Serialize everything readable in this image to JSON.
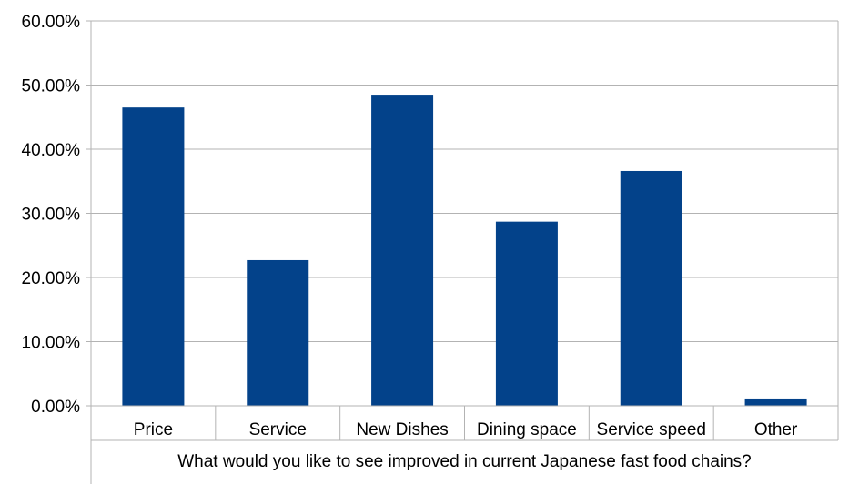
{
  "chart_data": {
    "type": "bar",
    "title": "",
    "xlabel": "What would you like to see improved in current Japanese fast food chains?",
    "ylabel": "",
    "categories": [
      "Price",
      "Service",
      "New Dishes",
      "Dining space",
      "Service speed",
      "Other"
    ],
    "values": [
      46.5,
      22.7,
      48.5,
      28.7,
      36.6,
      1.0
    ],
    "ylim": [
      0,
      60
    ],
    "yticks": [
      "0.00%",
      "10.00%",
      "20.00%",
      "30.00%",
      "40.00%",
      "50.00%",
      "60.00%"
    ],
    "ytick_values": [
      0,
      10,
      20,
      30,
      40,
      50,
      60
    ],
    "grid": true,
    "legend": "none",
    "colors": {
      "bar": "#03428A",
      "grid": "#B3B3B3",
      "axis": "#B3B3B3"
    }
  }
}
